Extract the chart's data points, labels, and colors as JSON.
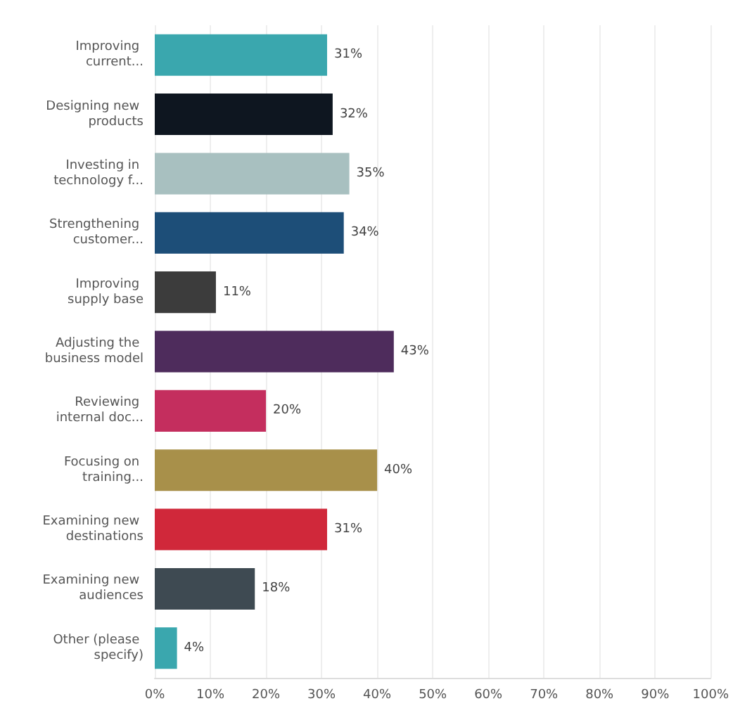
{
  "chart_data": {
    "type": "bar",
    "orientation": "horizontal",
    "categories": [
      "Improving current...",
      "Designing new products",
      "Investing in technology f...",
      "Strengthening customer...",
      "Improving supply base",
      "Adjusting the business model",
      "Reviewing internal doc...",
      "Focusing on training...",
      "Examining new destinations",
      "Examining new audiences",
      "Other (please specify)"
    ],
    "values": [
      31,
      32,
      35,
      34,
      11,
      43,
      20,
      40,
      31,
      18,
      4
    ],
    "value_labels": [
      "31%",
      "32%",
      "35%",
      "34%",
      "11%",
      "43%",
      "20%",
      "40%",
      "31%",
      "18%",
      "4%"
    ],
    "colors": [
      "#3aa7ae",
      "#0e1620",
      "#a8c0c0",
      "#1d4e78",
      "#3c3c3c",
      "#4e2c5c",
      "#c42e5e",
      "#a8904a",
      "#d0283a",
      "#3e4a52",
      "#3aa7ae"
    ],
    "xlim": [
      0,
      100
    ],
    "xticks": [
      {
        "value": 0,
        "label": "0%"
      },
      {
        "value": 10,
        "label": "10%"
      },
      {
        "value": 20,
        "label": "20%"
      },
      {
        "value": 30,
        "label": "30%"
      },
      {
        "value": 40,
        "label": "40%"
      },
      {
        "value": 50,
        "label": "50%"
      },
      {
        "value": 60,
        "label": "60%"
      },
      {
        "value": 70,
        "label": "70%"
      },
      {
        "value": 80,
        "label": "80%"
      },
      {
        "value": 90,
        "label": "90%"
      },
      {
        "value": 100,
        "label": "100%"
      }
    ],
    "grid": "x"
  }
}
